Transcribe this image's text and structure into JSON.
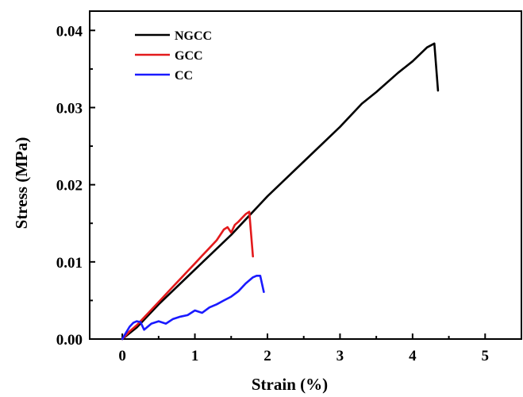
{
  "chart_data": {
    "type": "line",
    "xlabel": "Strain (%)",
    "ylabel": "Stress (MPa)",
    "xlim": [
      -0.45,
      5.5
    ],
    "ylim": [
      0,
      0.0425
    ],
    "xticks": [
      0,
      1,
      2,
      3,
      4,
      5
    ],
    "xtick_labels": [
      "0",
      "1",
      "2",
      "3",
      "4",
      "5"
    ],
    "yticks": [
      0,
      0.01,
      0.02,
      0.03,
      0.04
    ],
    "ytick_labels": [
      "0.00",
      "0.01",
      "0.02",
      "0.03",
      "0.04"
    ],
    "grid": false,
    "legend_position": "top-left",
    "series": [
      {
        "name": "NGCC",
        "color": "#000000",
        "x": [
          0,
          0.2,
          0.5,
          1.0,
          1.5,
          1.8,
          2.0,
          2.5,
          3.0,
          3.3,
          3.5,
          3.8,
          4.0,
          4.2,
          4.3,
          4.35
        ],
        "y": [
          0,
          0.0015,
          0.0045,
          0.009,
          0.0135,
          0.0165,
          0.0185,
          0.023,
          0.0275,
          0.0305,
          0.032,
          0.0345,
          0.036,
          0.0378,
          0.0383,
          0.0322
        ]
      },
      {
        "name": "GCC",
        "color": "#e31a1c",
        "x": [
          0,
          0.1,
          0.2,
          0.3,
          0.4,
          0.5,
          0.6,
          0.7,
          0.8,
          0.9,
          1.0,
          1.1,
          1.2,
          1.3,
          1.4,
          1.45,
          1.5,
          1.55,
          1.6,
          1.65,
          1.7,
          1.75,
          1.8
        ],
        "y": [
          0,
          0.001,
          0.0018,
          0.0028,
          0.0038,
          0.0048,
          0.0058,
          0.0068,
          0.0078,
          0.0088,
          0.0098,
          0.0108,
          0.0118,
          0.0128,
          0.0142,
          0.0145,
          0.0138,
          0.0148,
          0.0152,
          0.0157,
          0.0162,
          0.0165,
          0.0107
        ]
      },
      {
        "name": "CC",
        "color": "#1a1aff",
        "x": [
          0,
          0.05,
          0.1,
          0.15,
          0.2,
          0.25,
          0.3,
          0.4,
          0.5,
          0.6,
          0.7,
          0.8,
          0.9,
          1.0,
          1.1,
          1.2,
          1.3,
          1.4,
          1.5,
          1.6,
          1.7,
          1.8,
          1.85,
          1.9,
          1.95
        ],
        "y": [
          0,
          0.0008,
          0.0016,
          0.0021,
          0.0023,
          0.0022,
          0.0012,
          0.002,
          0.0023,
          0.002,
          0.0026,
          0.0029,
          0.0031,
          0.0037,
          0.0034,
          0.0041,
          0.0045,
          0.005,
          0.0055,
          0.0062,
          0.0072,
          0.008,
          0.0082,
          0.0082,
          0.0061
        ]
      }
    ]
  }
}
